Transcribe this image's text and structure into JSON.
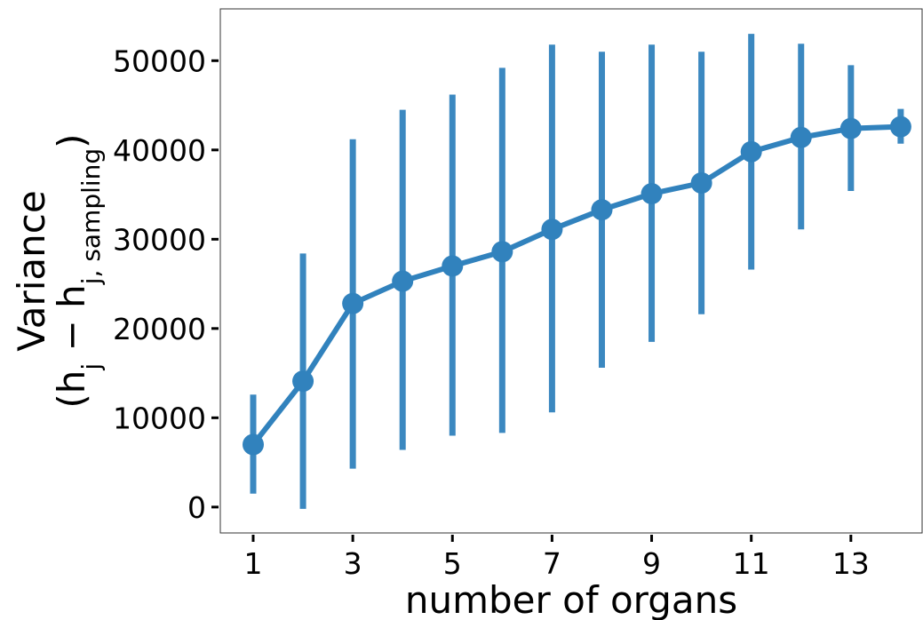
{
  "chart_data": {
    "type": "line",
    "xlabel": "number of  organs",
    "ylabel": [
      {
        "text": "Variance"
      }
    ],
    "ylabel2": [
      {
        "text": "(h"
      },
      {
        "text": "j",
        "sub": true
      },
      {
        "text": " − h"
      },
      {
        "text": "j, sampling",
        "sub": true
      },
      {
        "text": ")"
      }
    ],
    "x": [
      1,
      2,
      3,
      4,
      5,
      6,
      7,
      8,
      9,
      10,
      11,
      12,
      13,
      14
    ],
    "series": [
      {
        "color": "#3182bd",
        "values": [
          7000,
          14100,
          22800,
          25300,
          27000,
          28600,
          31100,
          33300,
          35100,
          36300,
          39800,
          41400,
          42400,
          42600
        ],
        "lower": [
          1500,
          -200,
          4300,
          6400,
          8000,
          8300,
          10600,
          15600,
          18500,
          21600,
          26600,
          31100,
          35400,
          40700
        ],
        "upper": [
          12600,
          28400,
          41200,
          44500,
          46200,
          49200,
          51800,
          51000,
          51800,
          51000,
          53000,
          51900,
          49500,
          44600
        ]
      }
    ],
    "xlim": [
      0.34,
      14.43
    ],
    "ylim": [
      -2900,
      55800
    ],
    "xticks": [
      1,
      3,
      5,
      7,
      9,
      11,
      13
    ],
    "yticks": [
      0,
      10000,
      20000,
      30000,
      40000,
      50000
    ]
  }
}
